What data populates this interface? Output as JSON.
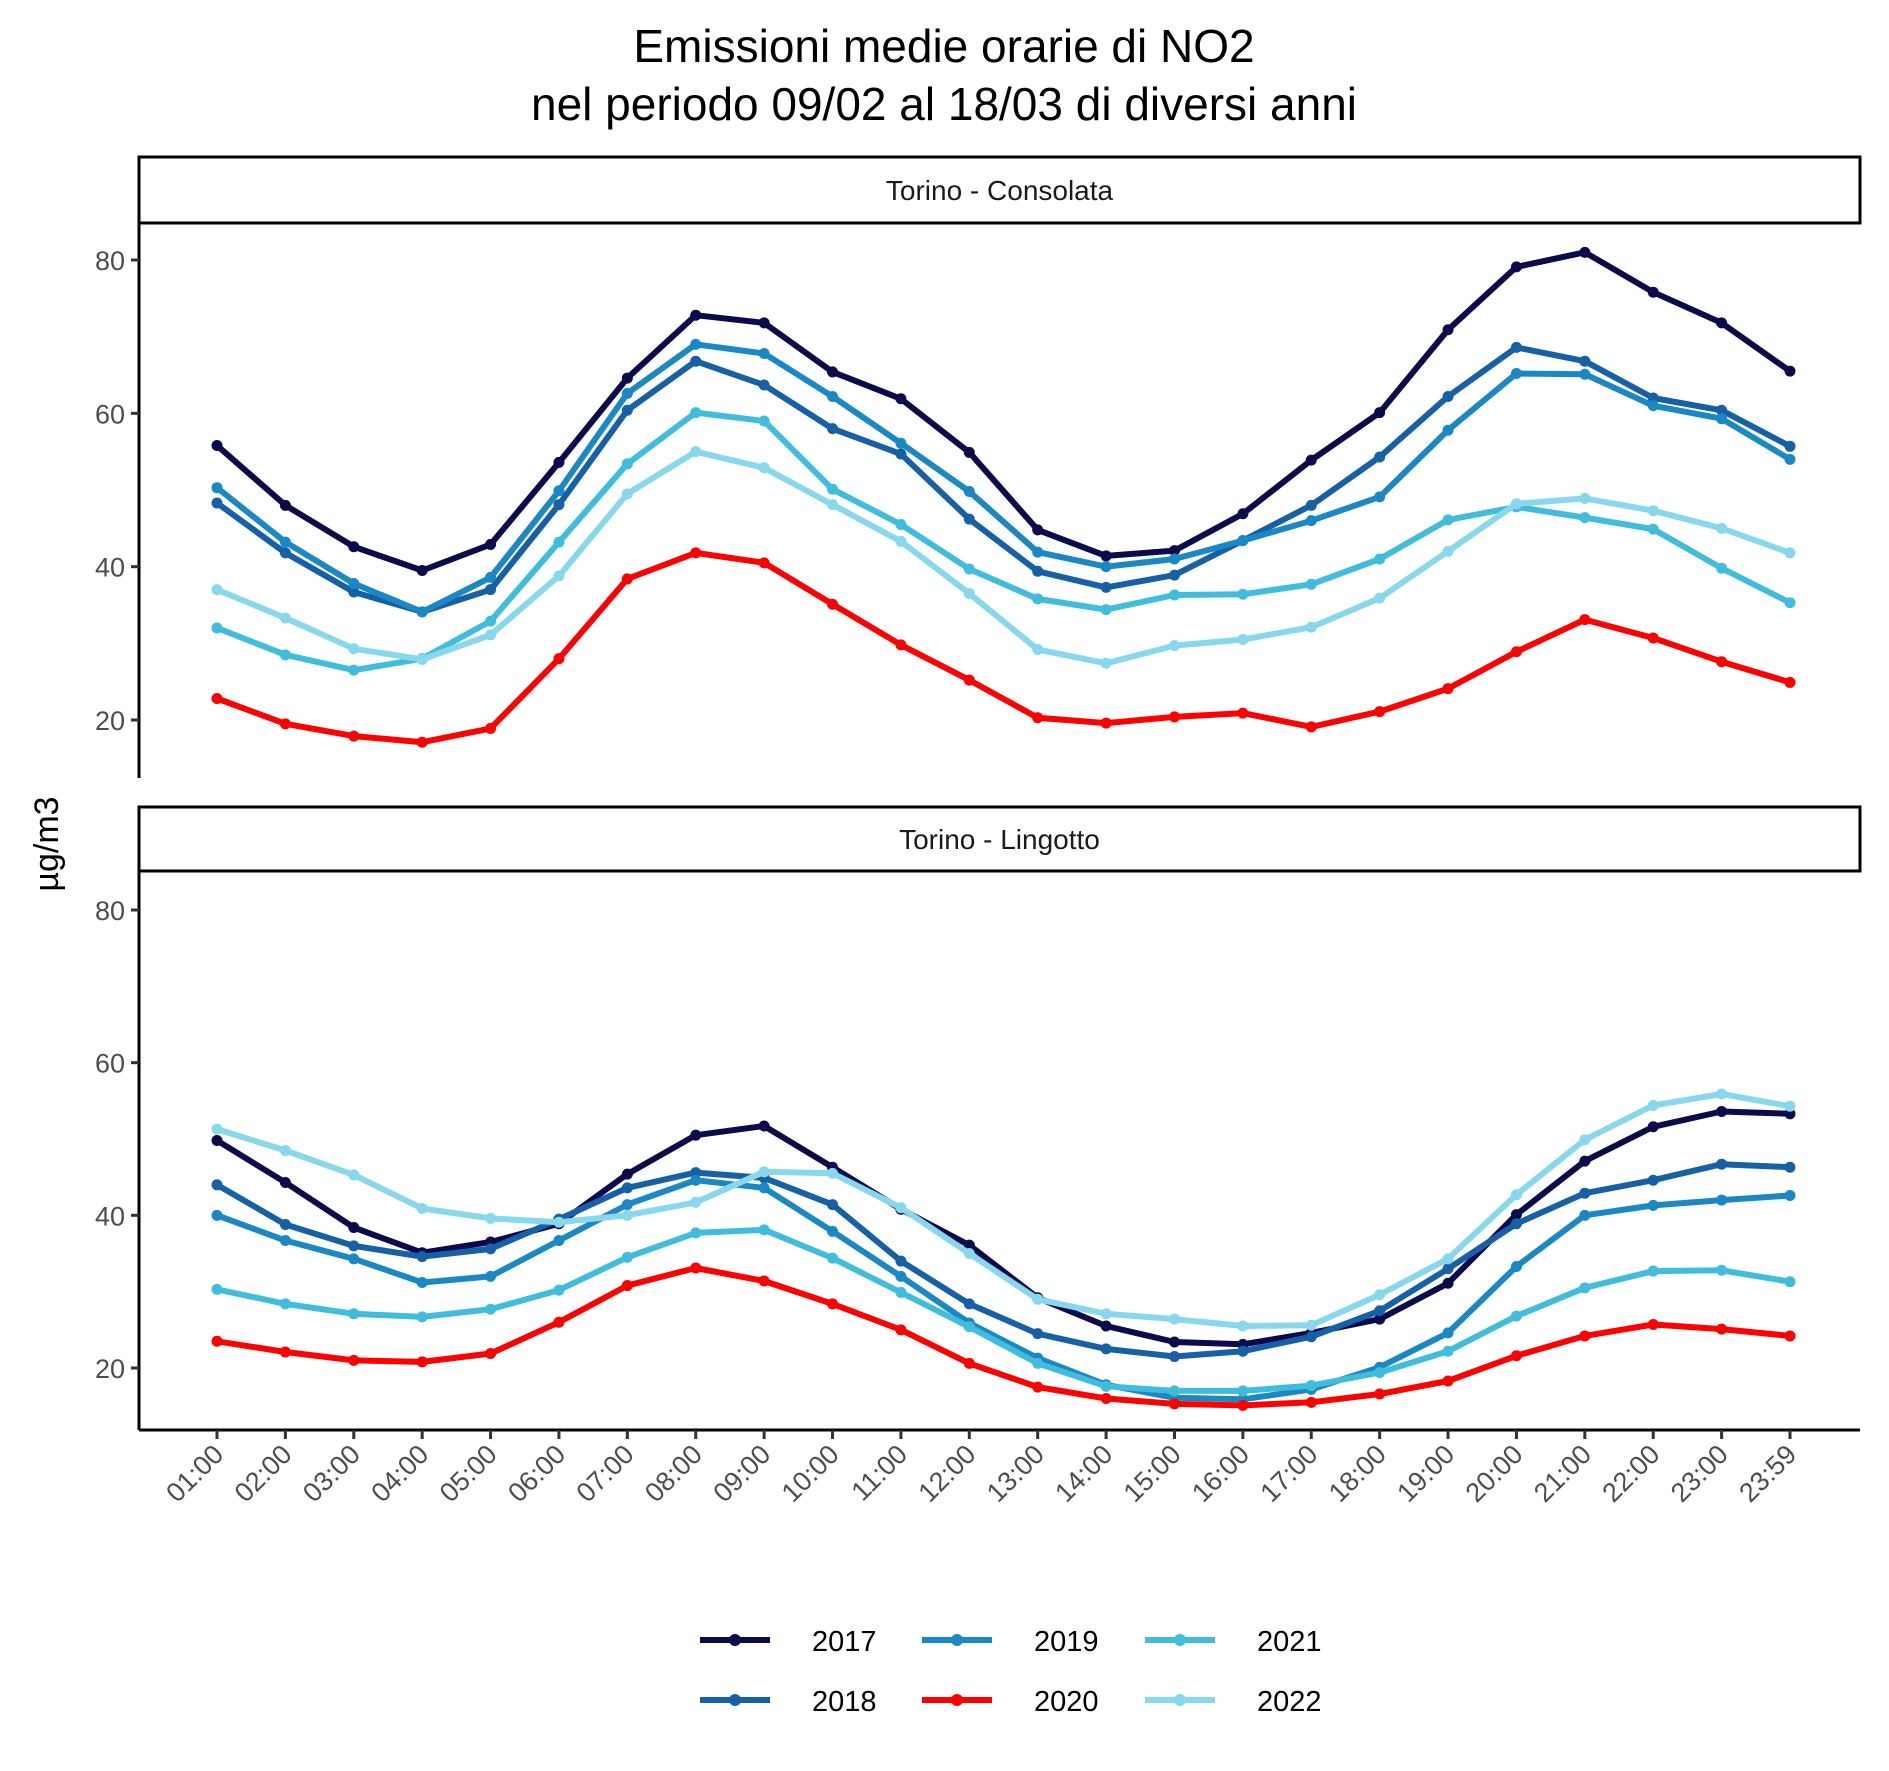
{
  "chart_data": {
    "type": "line",
    "title": [
      "Emissioni medie orarie di NO2",
      "nel periodo 09/02 al 18/03 di diversi anni"
    ],
    "xlabel": "",
    "ylabel": "µg/m3",
    "ylim": [
      12,
      92
    ],
    "yticks": [
      20,
      40,
      60,
      80
    ],
    "grid": false,
    "legend_position": "bottom",
    "categories": [
      "01:00",
      "02:00",
      "03:00",
      "04:00",
      "05:00",
      "06:00",
      "07:00",
      "08:00",
      "09:00",
      "10:00",
      "11:00",
      "12:00",
      "13:00",
      "14:00",
      "15:00",
      "16:00",
      "17:00",
      "18:00",
      "19:00",
      "20:00",
      "21:00",
      "22:00",
      "23:00",
      "23:59"
    ],
    "series_colors": {
      "2017": "#0a0a4d",
      "2018": "#1560a6",
      "2019": "#1a88c4",
      "2020": "#ff0000",
      "2021": "#40bddd",
      "2022": "#87d8ec"
    },
    "panels": [
      {
        "name": "Torino - Consolata",
        "series": [
          {
            "name": "2017",
            "values": [
              55.8,
              48.0,
              42.6,
              39.5,
              42.9,
              53.6,
              64.6,
              72.8,
              71.8,
              65.4,
              61.9,
              54.9,
              44.8,
              41.4,
              42.1,
              46.9,
              53.9,
              60.1,
              70.9,
              79.1,
              81.0,
              75.8,
              71.8,
              65.5
            ]
          },
          {
            "name": "2018",
            "values": [
              48.3,
              41.8,
              36.7,
              34.1,
              37.0,
              48.1,
              60.4,
              66.8,
              63.7,
              58.0,
              54.7,
              46.2,
              39.4,
              37.3,
              38.9,
              43.4,
              48.0,
              54.3,
              62.2,
              68.6,
              66.8,
              62.0,
              60.4,
              55.7
            ]
          },
          {
            "name": "2019",
            "values": [
              50.3,
              43.2,
              37.8,
              34.1,
              38.6,
              49.9,
              62.6,
              69.0,
              67.8,
              62.2,
              56.1,
              49.8,
              41.9,
              40.0,
              41.0,
              43.4,
              46.0,
              49.1,
              57.8,
              65.2,
              65.1,
              61.0,
              59.3,
              54.0
            ]
          },
          {
            "name": "2020",
            "values": [
              22.8,
              19.5,
              17.9,
              17.1,
              18.9,
              28.0,
              38.4,
              41.8,
              40.5,
              35.1,
              29.8,
              25.2,
              20.3,
              19.6,
              20.4,
              20.9,
              19.1,
              21.1,
              24.1,
              28.9,
              33.1,
              30.7,
              27.6,
              24.9
            ]
          },
          {
            "name": "2021",
            "values": [
              32.0,
              28.5,
              26.5,
              28.0,
              32.9,
              43.2,
              53.4,
              60.1,
              59.0,
              50.1,
              45.5,
              39.7,
              35.8,
              34.4,
              36.3,
              36.4,
              37.7,
              41.0,
              46.1,
              47.8,
              46.4,
              44.9,
              39.8,
              35.3
            ]
          },
          {
            "name": "2022",
            "values": [
              37.0,
              33.3,
              29.3,
              27.9,
              31.1,
              38.8,
              49.5,
              55.0,
              52.9,
              48.1,
              43.3,
              36.5,
              29.2,
              27.4,
              29.7,
              30.5,
              32.1,
              35.9,
              42.0,
              48.2,
              48.9,
              47.3,
              45.0,
              41.8
            ]
          }
        ]
      },
      {
        "name": "Torino - Lingotto",
        "series": [
          {
            "name": "2017",
            "values": [
              49.8,
              44.3,
              38.4,
              35.1,
              36.5,
              38.9,
              45.4,
              50.5,
              51.7,
              46.3,
              40.8,
              36.1,
              29.2,
              25.5,
              23.4,
              23.1,
              24.6,
              26.4,
              31.1,
              40.1,
              47.1,
              51.6,
              53.6,
              53.3
            ]
          },
          {
            "name": "2018",
            "values": [
              44.0,
              38.8,
              36.0,
              34.6,
              35.6,
              39.5,
              43.6,
              45.6,
              44.9,
              41.4,
              34.0,
              28.4,
              24.5,
              22.5,
              21.5,
              22.2,
              24.1,
              27.5,
              33.0,
              38.9,
              42.9,
              44.6,
              46.7,
              46.3
            ]
          },
          {
            "name": "2019",
            "values": [
              40.0,
              36.7,
              34.3,
              31.2,
              32.0,
              36.7,
              41.4,
              44.6,
              43.6,
              37.9,
              32.0,
              25.9,
              21.3,
              17.8,
              16.1,
              15.9,
              17.2,
              20.1,
              24.6,
              33.3,
              40.0,
              41.3,
              42.0,
              42.6
            ]
          },
          {
            "name": "2020",
            "values": [
              23.5,
              22.1,
              21.0,
              20.8,
              21.9,
              26.0,
              30.8,
              33.1,
              31.4,
              28.4,
              25.0,
              20.6,
              17.5,
              16.0,
              15.3,
              15.1,
              15.5,
              16.6,
              18.3,
              21.6,
              24.2,
              25.7,
              25.1,
              24.2
            ]
          },
          {
            "name": "2021",
            "values": [
              30.3,
              28.4,
              27.1,
              26.7,
              27.7,
              30.2,
              34.5,
              37.7,
              38.1,
              34.4,
              29.9,
              25.4,
              20.6,
              17.6,
              17.0,
              17.0,
              17.7,
              19.4,
              22.2,
              26.8,
              30.5,
              32.7,
              32.8,
              31.3
            ]
          },
          {
            "name": "2022",
            "values": [
              51.3,
              48.5,
              45.3,
              40.9,
              39.6,
              39.1,
              40.0,
              41.7,
              45.7,
              45.5,
              41.0,
              35.0,
              29.0,
              27.1,
              26.4,
              25.5,
              25.6,
              29.6,
              34.3,
              42.7,
              49.9,
              54.4,
              55.9,
              54.3
            ]
          }
        ]
      }
    ]
  }
}
